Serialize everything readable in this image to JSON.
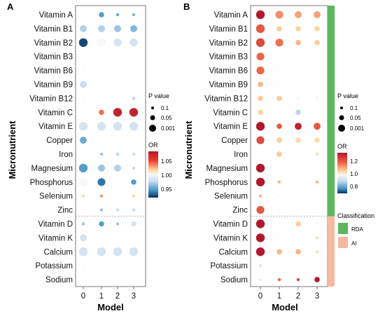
{
  "chart_data": [
    {
      "panel_label": "A",
      "type": "dot-matrix",
      "xlabel": "Model",
      "ylabel": "Micronutrient",
      "x": [
        "0",
        "1",
        "2",
        "3"
      ],
      "rows": [
        "Vitamin A",
        "Vitamin B1",
        "Vitamin B2",
        "Vitamin B3",
        "Vitamin B6",
        "Vitamin B9",
        "Vitamin B12",
        "Vitamin C",
        "Vitamin E",
        "Copper",
        "Iron",
        "Magnesium",
        "Phosphorus",
        "Selenium",
        "Zinc",
        "Vitamin D",
        "Vitamin K",
        "Calcium",
        "Potassium",
        "Sodium"
      ],
      "group_split_after_row": 14,
      "size_legend": {
        "title": "P value",
        "labels": [
          "0.1",
          "0.05",
          "0.001"
        ]
      },
      "color_legend": {
        "title": "OR",
        "ticks": [
          "1.05",
          "1.00",
          "0.95"
        ],
        "range": [
          0.93,
          1.07
        ]
      },
      "or_values": [
        [
          1.0,
          0.955,
          0.96,
          0.965
        ],
        [
          0.975,
          0.975,
          0.97,
          0.965
        ],
        [
          0.935,
          1.0,
          0.985,
          0.985
        ],
        [
          1.0,
          1.0,
          1.0,
          1.0
        ],
        [
          1.0,
          1.0,
          1.0,
          1.0
        ],
        [
          0.98,
          1.0,
          1.0,
          1.0
        ],
        [
          1.0,
          1.0,
          1.0,
          0.975
        ],
        [
          1.0,
          1.04,
          1.065,
          1.065
        ],
        [
          0.985,
          0.985,
          0.985,
          0.985
        ],
        [
          0.96,
          1.0,
          1.0,
          1.0
        ],
        [
          1.0,
          0.97,
          0.975,
          0.98
        ],
        [
          0.955,
          0.97,
          0.975,
          0.98
        ],
        [
          1.0,
          0.945,
          1.0,
          0.955
        ],
        [
          1.015,
          1.03,
          1.0,
          1.015
        ],
        [
          1.0,
          0.97,
          0.98,
          0.98
        ],
        [
          0.97,
          0.955,
          0.97,
          0.985
        ],
        [
          0.985,
          1.0,
          1.0,
          1.0
        ],
        [
          0.985,
          0.985,
          0.985,
          0.985
        ],
        [
          1.0,
          1.0,
          1.0,
          1.0
        ],
        [
          1.0,
          1.0,
          1.0,
          1.0
        ]
      ],
      "p_values": [
        [
          0.5,
          0.05,
          0.1,
          0.1
        ],
        [
          0.01,
          0.01,
          0.01,
          0.01
        ],
        [
          0.001,
          0.001,
          0.005,
          0.005
        ],
        [
          0.5,
          0.5,
          0.5,
          0.5
        ],
        [
          0.5,
          0.5,
          0.5,
          0.5
        ],
        [
          0.01,
          0.5,
          0.5,
          0.5
        ],
        [
          0.5,
          0.5,
          0.5,
          0.1
        ],
        [
          0.5,
          0.05,
          0.001,
          0.001
        ],
        [
          0.001,
          0.001,
          0.001,
          0.001
        ],
        [
          0.01,
          0.5,
          0.5,
          0.5
        ],
        [
          0.5,
          0.1,
          0.1,
          0.1
        ],
        [
          0.001,
          0.01,
          0.01,
          0.1
        ],
        [
          0.005,
          0.005,
          0.5,
          0.05
        ],
        [
          0.1,
          0.1,
          0.5,
          0.1
        ],
        [
          0.5,
          0.1,
          0.1,
          0.1
        ],
        [
          0.1,
          0.05,
          0.1,
          0.05
        ],
        [
          0.01,
          0.5,
          0.5,
          0.5
        ],
        [
          0.001,
          0.001,
          0.001,
          0.001
        ],
        [
          0.5,
          0.5,
          0.5,
          0.5
        ],
        [
          0.5,
          0.5,
          0.5,
          0.5
        ]
      ]
    },
    {
      "panel_label": "B",
      "type": "dot-matrix",
      "xlabel": "Model",
      "ylabel": "Micronutrient",
      "x": [
        "0",
        "1",
        "2",
        "3"
      ],
      "rows": [
        "Vitamin A",
        "Vitamin B1",
        "Vitamin B2",
        "Vitamin B3",
        "Vitamin B6",
        "Vitamin B9",
        "Vitamin B12",
        "Vitamin C",
        "Vitamin E",
        "Copper",
        "Iron",
        "Magnesium",
        "Phosphorus",
        "Selenium",
        "Zinc",
        "Vitamin D",
        "Vitamin K",
        "Calcium",
        "Potassium",
        "Sodium"
      ],
      "group_split_after_row": 14,
      "size_legend": {
        "title": "P value",
        "labels": [
          "0.1",
          "0.05",
          "0.001"
        ]
      },
      "color_legend": {
        "title": "OR",
        "ticks": [
          "1.2",
          "1.0",
          "0.8"
        ],
        "range": [
          0.7,
          1.3
        ]
      },
      "classification_legend": {
        "title": "Classification",
        "items": [
          {
            "label": "RDA",
            "color": "#5cb85c"
          },
          {
            "label": "AI",
            "color": "#f4b9a0"
          }
        ]
      },
      "or_values": [
        [
          1.3,
          1.14,
          1.12,
          1.12
        ],
        [
          1.2,
          1.08,
          1.07,
          1.07
        ],
        [
          1.22,
          1.17,
          1.1,
          1.08
        ],
        [
          1.18,
          1.0,
          1.0,
          1.0
        ],
        [
          1.18,
          1.0,
          1.0,
          1.0
        ],
        [
          1.1,
          1.0,
          1.0,
          1.0
        ],
        [
          1.08,
          1.08,
          1.03,
          1.03
        ],
        [
          1.07,
          1.0,
          0.9,
          1.0
        ],
        [
          1.3,
          1.2,
          1.28,
          1.2
        ],
        [
          1.22,
          1.08,
          1.06,
          1.06
        ],
        [
          1.0,
          1.08,
          1.0,
          1.06
        ],
        [
          1.3,
          1.0,
          1.0,
          1.0
        ],
        [
          1.3,
          1.1,
          1.0,
          1.1
        ],
        [
          1.1,
          1.0,
          1.0,
          1.0
        ],
        [
          1.2,
          1.0,
          1.0,
          1.0
        ],
        [
          1.3,
          1.0,
          1.08,
          1.0
        ],
        [
          1.3,
          1.0,
          1.0,
          1.06
        ],
        [
          1.3,
          1.1,
          1.1,
          1.06
        ],
        [
          0.95,
          1.0,
          1.0,
          1.0
        ],
        [
          1.06,
          1.18,
          1.22,
          1.3
        ]
      ],
      "p_values": [
        [
          0.001,
          0.005,
          0.01,
          0.01
        ],
        [
          0.001,
          0.05,
          0.05,
          0.05
        ],
        [
          0.001,
          0.005,
          0.05,
          0.05
        ],
        [
          0.005,
          0.5,
          0.5,
          0.5
        ],
        [
          0.005,
          0.5,
          0.5,
          0.5
        ],
        [
          0.05,
          0.5,
          0.5,
          0.5
        ],
        [
          0.05,
          0.05,
          0.5,
          0.5
        ],
        [
          0.05,
          0.5,
          0.05,
          0.5
        ],
        [
          0.001,
          0.05,
          0.01,
          0.01
        ],
        [
          0.005,
          0.05,
          0.05,
          0.05
        ],
        [
          0.5,
          0.05,
          0.5,
          0.1
        ],
        [
          0.001,
          0.5,
          0.5,
          0.5
        ],
        [
          0.001,
          0.1,
          0.5,
          0.1
        ],
        [
          0.1,
          0.5,
          0.5,
          0.5
        ],
        [
          0.005,
          0.5,
          0.5,
          0.5
        ],
        [
          0.001,
          0.5,
          0.05,
          0.5
        ],
        [
          0.001,
          0.5,
          0.5,
          0.1
        ],
        [
          0.001,
          0.05,
          0.05,
          0.1
        ],
        [
          0.1,
          0.5,
          0.5,
          0.5
        ],
        [
          0.5,
          0.1,
          0.1,
          0.05
        ]
      ]
    }
  ]
}
